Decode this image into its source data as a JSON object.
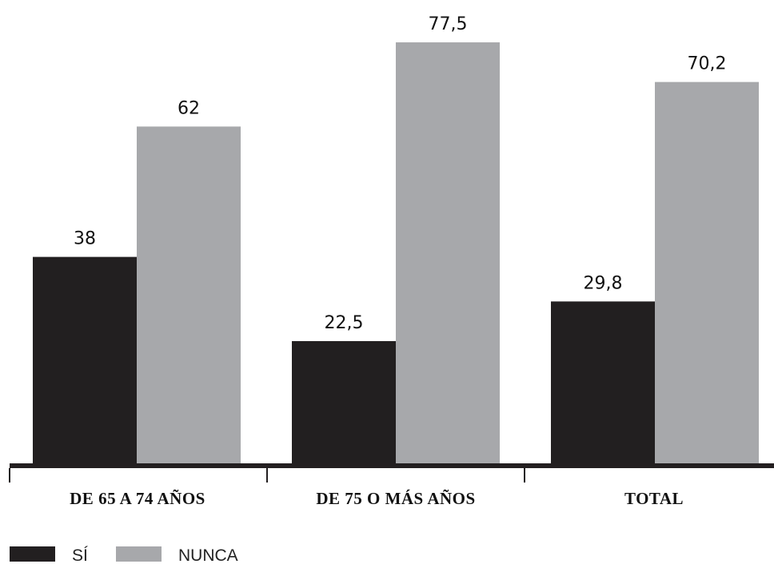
{
  "chart_data": {
    "type": "bar",
    "categories": [
      "DE 65 A 74 AÑOS",
      "DE 75 O MÁS AÑOS",
      "TOTAL"
    ],
    "series": [
      {
        "name": "SÍ",
        "values": [
          38,
          22.5,
          29.8
        ],
        "value_labels": [
          "38",
          "22,5",
          "29,8"
        ]
      },
      {
        "name": "NUNCA",
        "values": [
          62,
          77.5,
          70.2
        ],
        "value_labels": [
          "62",
          "77,5",
          "70,2"
        ]
      }
    ],
    "title": "",
    "xlabel": "",
    "ylabel": "",
    "ylim": [
      0,
      80
    ],
    "grid": false,
    "legend": "bottom-left"
  },
  "colors": {
    "SÍ": "#221f20",
    "NUNCA": "#a7a8ab",
    "axis": "#231f20"
  }
}
